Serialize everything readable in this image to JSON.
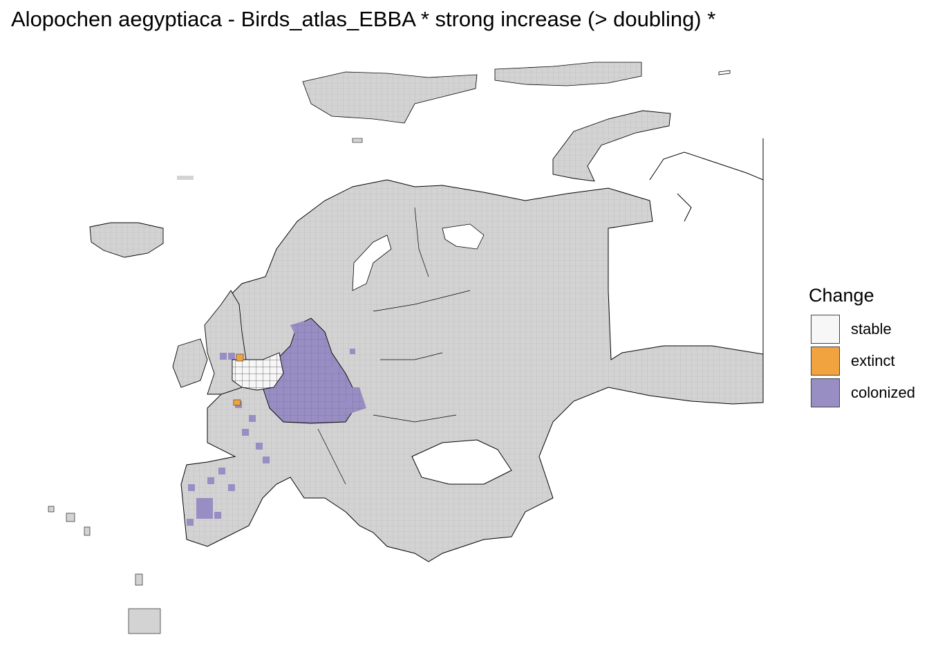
{
  "title": "Alopochen aegyptiaca - Birds_atlas_EBBA * strong increase (> doubling) *",
  "legend": {
    "title": "Change",
    "items": [
      {
        "label": "stable",
        "color": "#f7f7f7"
      },
      {
        "label": "extinct",
        "color": "#f1a340"
      },
      {
        "label": "colonized",
        "color": "#998ec3"
      }
    ]
  },
  "colors": {
    "no_data": "#d3d3d3",
    "grid_line": "#a8a8a8",
    "border": "#000000"
  }
}
